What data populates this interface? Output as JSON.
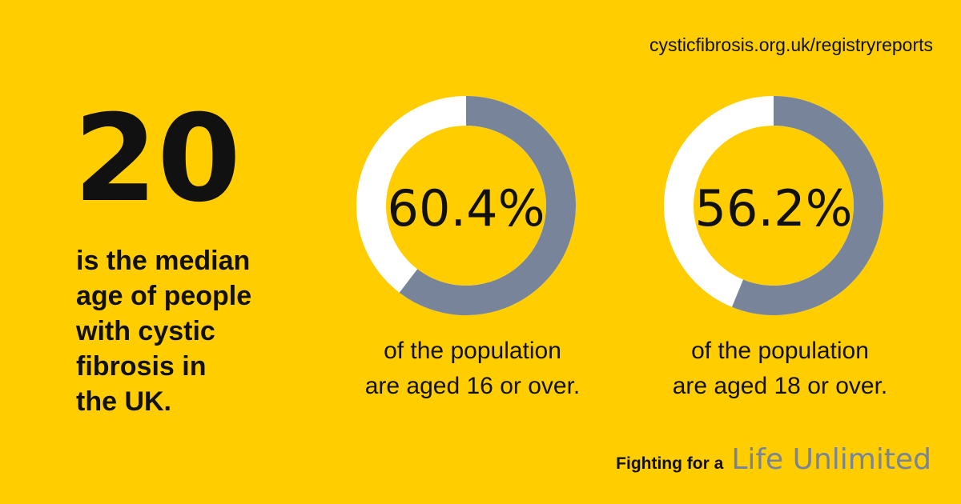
{
  "url": "cysticfibrosis.org.uk/registryreports",
  "headline": {
    "number": 20,
    "lines": [
      "is the median",
      "age of people",
      "with cystic",
      "fibrosis in",
      "the UK."
    ]
  },
  "donuts": [
    {
      "value": 60.4,
      "value_label": "60.4%",
      "caption": [
        "of the population",
        "are aged 16 or over."
      ],
      "color": "#78849a"
    },
    {
      "value": 56.2,
      "value_label": "56.2%",
      "caption": [
        "of the population",
        "are aged 18 or over."
      ],
      "color": "#78849a"
    }
  ],
  "tagline": {
    "lead": "Fighting for a",
    "brand": "Life Unlimited"
  }
}
